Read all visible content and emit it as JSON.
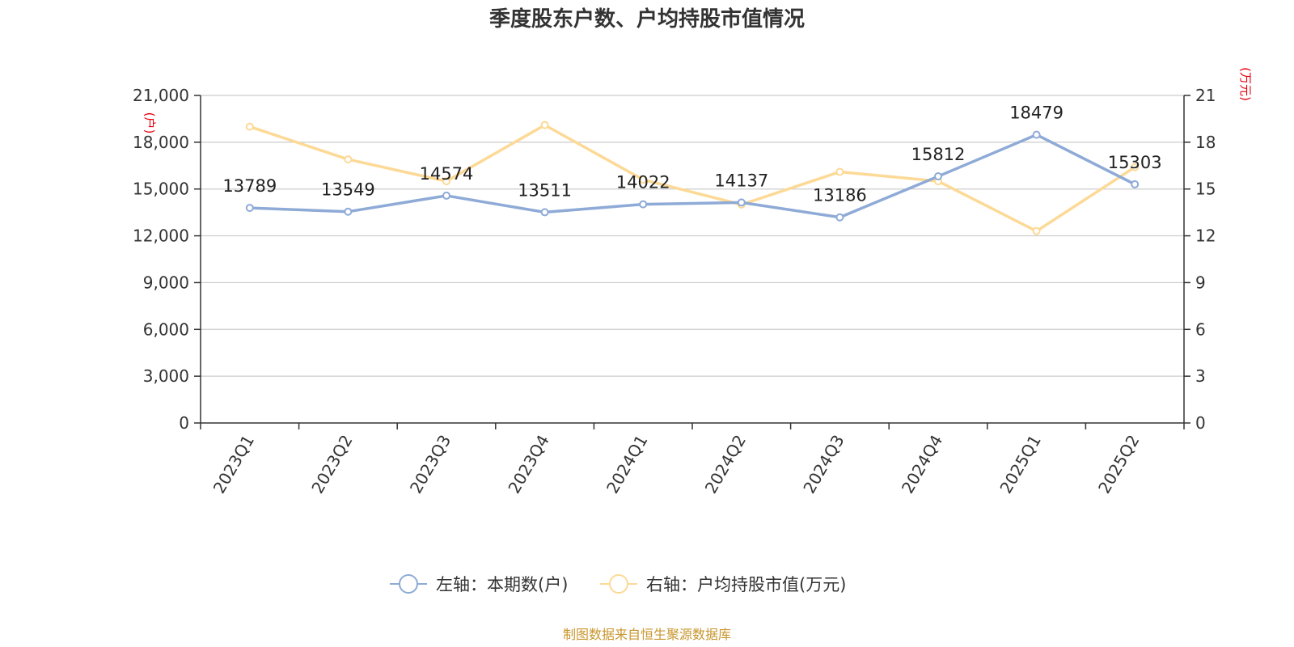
{
  "chart_data": {
    "type": "line",
    "title": "季度股东户数、户均持股市值情况",
    "categories": [
      "2023Q1",
      "2023Q2",
      "2023Q3",
      "2023Q4",
      "2024Q1",
      "2024Q2",
      "2024Q3",
      "2024Q4",
      "2025Q1",
      "2025Q2"
    ],
    "left_axis": {
      "unit": "(户)",
      "min": 0,
      "max": 21000,
      "ticks": [
        "0",
        "3,000",
        "6,000",
        "9,000",
        "12,000",
        "15,000",
        "18,000",
        "21,000"
      ]
    },
    "right_axis": {
      "unit": "(万元)",
      "min": 0,
      "max": 21,
      "ticks": [
        "0",
        "3",
        "6",
        "9",
        "12",
        "15",
        "18",
        "21"
      ]
    },
    "series": [
      {
        "name": "左轴：本期数(户)",
        "axis": "left",
        "color": "#8eaad6",
        "values": [
          13789,
          13549,
          14574,
          13511,
          14022,
          14137,
          13186,
          15812,
          18479,
          15303
        ],
        "labels": [
          "13789",
          "13549",
          "14574",
          "13511",
          "14022",
          "14137",
          "13186",
          "15812",
          "18479",
          "15303"
        ]
      },
      {
        "name": "右轴：户均持股市值(万元)",
        "axis": "right",
        "color": "#fdd996",
        "values": [
          19.0,
          16.9,
          15.5,
          19.1,
          15.6,
          14.0,
          16.1,
          15.5,
          12.3,
          16.4
        ]
      }
    ],
    "grid": true,
    "legend_position": "bottom-center",
    "source": "制图数据来自恒生聚源数据库"
  }
}
